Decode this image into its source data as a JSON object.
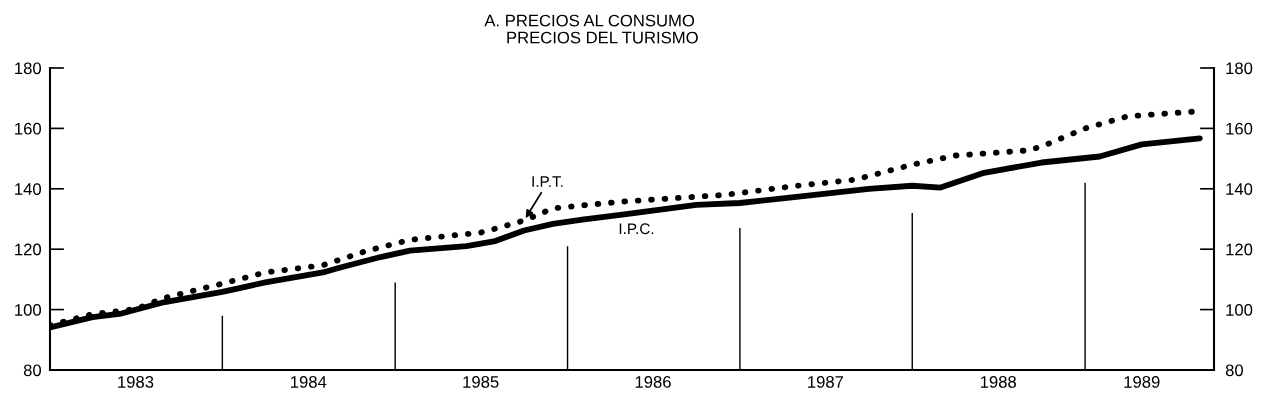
{
  "chart_data": {
    "type": "line",
    "title": "A. PRECIOS AL CONSUMO",
    "subtitle": "PRECIOS DEL TURISMO",
    "xlim": [
      "1983-01",
      "1989-10"
    ],
    "xticks": [
      {
        "value": "1983-07",
        "label": "1983"
      },
      {
        "value": "1984-07",
        "label": "1984"
      },
      {
        "value": "1985-07",
        "label": "1985"
      },
      {
        "value": "1986-07",
        "label": "1986"
      },
      {
        "value": "1987-07",
        "label": "1987"
      },
      {
        "value": "1988-07",
        "label": "1988"
      },
      {
        "value": "1989-05",
        "label": "1989"
      }
    ],
    "ylim": [
      80,
      180
    ],
    "yticks": [
      80,
      100,
      120,
      140,
      160,
      180
    ],
    "y2lim": [
      80,
      180
    ],
    "y2ticks": [
      80,
      100,
      120,
      140,
      160,
      180
    ],
    "grid": false,
    "legend": false,
    "series": [
      {
        "type": "bar",
        "color": "#000000",
        "x": [
          "1984-01",
          "1985-01",
          "1986-01",
          "1987-01",
          "1988-01",
          "1989-01"
        ],
        "values": [
          98,
          109,
          121,
          127,
          132,
          142
        ]
      },
      {
        "line_style": "dotted",
        "color": "#000000",
        "x": [
          "1983-01",
          "1983-04",
          "1983-07",
          "1983-09",
          "1984-01",
          "1984-04",
          "1984-08",
          "1984-11",
          "1985-02",
          "1985-07",
          "1985-08",
          "1985-10",
          "1985-12",
          "1986-02",
          "1986-05",
          "1986-12",
          "1987-05",
          "1987-09",
          "1988-01",
          "1988-04",
          "1988-09",
          "1988-10",
          "1989-01",
          "1989-04",
          "1989-09"
        ],
        "values": [
          94.8,
          98.5,
          100.2,
          103.9,
          108.6,
          112.3,
          114.7,
          119.4,
          123.1,
          125.5,
          126.8,
          129.5,
          133.5,
          134.5,
          135.8,
          138,
          141,
          143,
          148,
          151,
          152.7,
          154,
          160,
          164,
          165.7
        ]
      },
      {
        "line_style": "solid",
        "color": "#000000",
        "x": [
          "1983-01",
          "1983-04",
          "1983-06",
          "1983-09",
          "1984-01",
          "1984-04",
          "1984-08",
          "1984-09",
          "1984-12",
          "1985-02",
          "1985-06",
          "1985-08",
          "1985-10",
          "1985-12",
          "1986-02",
          "1986-05",
          "1986-10",
          "1987-01",
          "1987-05",
          "1987-10",
          "1988-01",
          "1988-03",
          "1988-06",
          "1988-10",
          "1989-02",
          "1989-05",
          "1989-09"
        ],
        "values": [
          94.1,
          97.5,
          98.7,
          102.5,
          105.9,
          109,
          112.3,
          113.7,
          117.4,
          119.5,
          121,
          122.7,
          126.2,
          128.4,
          129.8,
          131.5,
          134.7,
          135.3,
          137.3,
          140,
          141,
          140.4,
          145.3,
          148.7,
          150.7,
          154.7,
          156.7
        ]
      }
    ],
    "annotations": [
      {
        "text": "I.P.T.",
        "x": "1985-10",
        "y": 129.5
      },
      {
        "text": "I.P.C.",
        "x": "1986-04",
        "y": 131
      }
    ]
  }
}
